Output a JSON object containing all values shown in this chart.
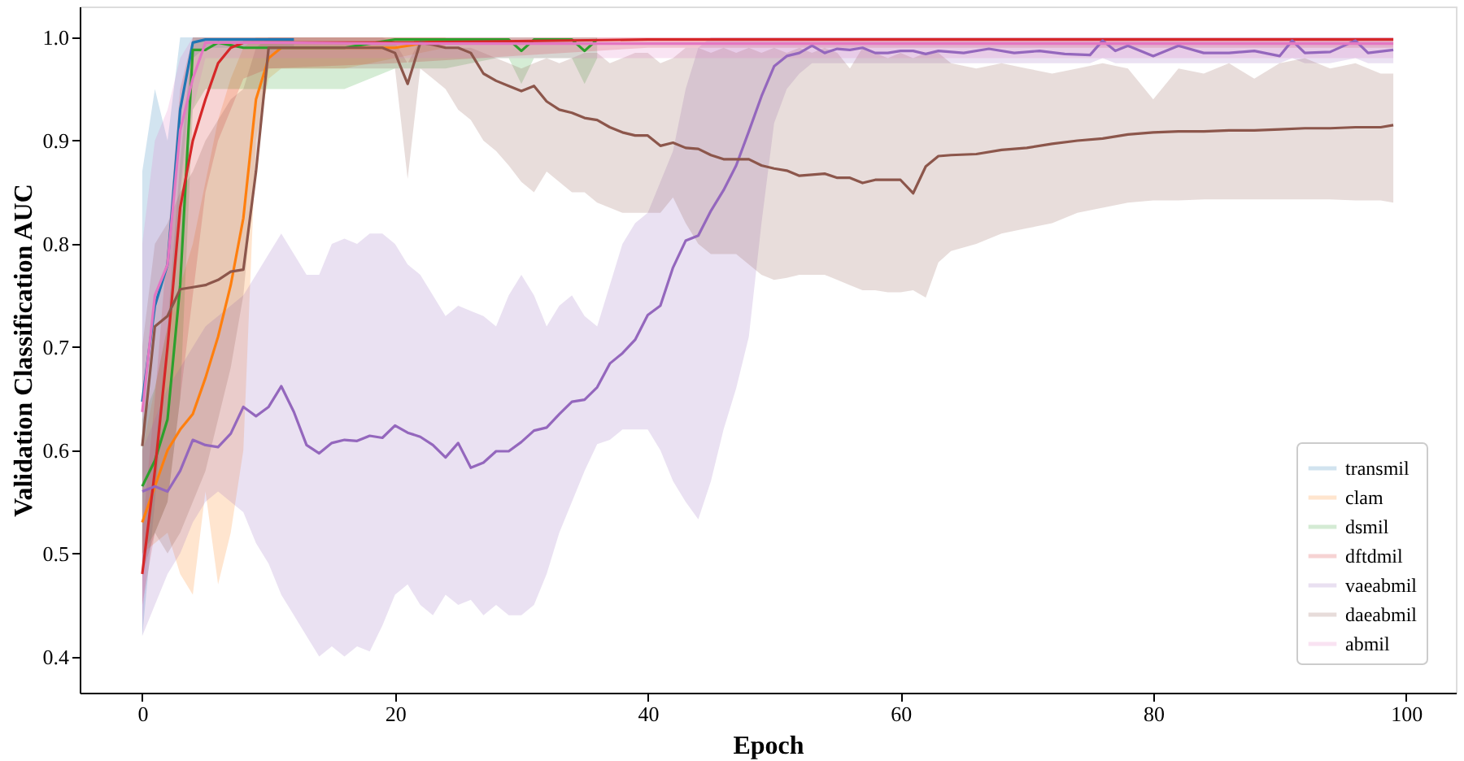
{
  "chart_data": {
    "type": "line",
    "xlabel": "Epoch",
    "ylabel": "Validation Classification AUC",
    "xlim": [
      -4.95,
      103.95
    ],
    "ylim": [
      0.365,
      1.03
    ],
    "xticks": [
      0,
      20,
      40,
      60,
      80,
      100
    ],
    "yticks": [
      {
        "value": 0.4,
        "label": "0.4"
      },
      {
        "value": 0.5,
        "label": "0.5"
      },
      {
        "value": 0.6,
        "label": "0.6"
      },
      {
        "value": 0.7,
        "label": "0.7"
      },
      {
        "value": 0.8,
        "label": "0.8"
      },
      {
        "value": 0.9,
        "label": "0.9"
      },
      {
        "value": 1.0,
        "label": "1.0"
      }
    ],
    "grid": false,
    "legend": "bottom right",
    "line_style": "solid",
    "marker": "none",
    "series": [
      {
        "name": "transmil",
        "color": "#1f77b4",
        "x": [
          0,
          1,
          2,
          3,
          4,
          5,
          8,
          12
        ],
        "values": [
          0.647,
          0.74,
          0.78,
          0.93,
          0.995,
          0.998,
          0.998,
          0.998
        ],
        "lower": [
          0.42,
          0.55,
          0.7,
          0.85,
          0.98,
          0.99,
          0.99,
          0.99
        ],
        "upper": [
          0.87,
          0.95,
          0.9,
          1.0,
          1.0,
          1.0,
          1.0,
          1.0
        ]
      },
      {
        "name": "clam",
        "color": "#ff7f0e",
        "x": [
          0,
          1,
          2,
          3,
          4,
          5,
          6,
          7,
          8,
          9,
          10,
          11,
          12,
          16,
          20,
          24
        ],
        "values": [
          0.53,
          0.565,
          0.6,
          0.62,
          0.635,
          0.67,
          0.71,
          0.76,
          0.825,
          0.94,
          0.98,
          0.99,
          0.99,
          0.99,
          0.99,
          0.998
        ],
        "lower": [
          0.5,
          0.51,
          0.52,
          0.48,
          0.46,
          0.56,
          0.47,
          0.52,
          0.6,
          0.9,
          0.96,
          0.97,
          0.97,
          0.97,
          0.98,
          0.99
        ],
        "upper": [
          0.6,
          0.66,
          0.72,
          0.76,
          0.8,
          0.86,
          0.92,
          0.96,
          0.99,
          1.0,
          1.0,
          1.0,
          1.0,
          1.0,
          1.0,
          1.0
        ]
      },
      {
        "name": "dsmil",
        "color": "#2ca02c",
        "x": [
          0,
          1,
          2,
          3,
          4,
          5,
          6,
          8,
          12,
          16,
          20,
          24,
          28,
          29,
          30,
          31,
          33,
          34,
          35,
          36
        ],
        "values": [
          0.565,
          0.59,
          0.63,
          0.76,
          0.988,
          0.988,
          0.995,
          0.99,
          0.99,
          0.99,
          0.998,
          0.998,
          0.998,
          0.998,
          0.987,
          0.998,
          0.998,
          0.998,
          0.987,
          0.998
        ],
        "lower": [
          0.5,
          0.52,
          0.55,
          0.65,
          0.93,
          0.95,
          0.95,
          0.95,
          0.95,
          0.95,
          0.97,
          0.97,
          0.98,
          0.98,
          0.955,
          0.98,
          0.98,
          0.98,
          0.955,
          0.98
        ],
        "upper": [
          0.63,
          0.66,
          0.72,
          0.88,
          1.0,
          1.0,
          1.0,
          1.0,
          1.0,
          1.0,
          1.0,
          1.0,
          1.0,
          1.0,
          1.0,
          1.0,
          1.0,
          1.0,
          1.0,
          1.0
        ]
      },
      {
        "name": "dftdmil",
        "color": "#d62728",
        "x": [
          0,
          1,
          2,
          3,
          4,
          5,
          6,
          7,
          8,
          10,
          20,
          40,
          60,
          80,
          99
        ],
        "values": [
          0.48,
          0.58,
          0.7,
          0.835,
          0.9,
          0.94,
          0.975,
          0.99,
          0.995,
          0.995,
          0.995,
          0.998,
          0.998,
          0.998,
          0.998
        ],
        "lower": [
          0.45,
          0.52,
          0.55,
          0.65,
          0.75,
          0.85,
          0.9,
          0.93,
          0.96,
          0.97,
          0.975,
          0.99,
          0.99,
          0.99,
          0.99
        ],
        "upper": [
          0.52,
          0.65,
          0.8,
          0.95,
          1.0,
          1.0,
          1.0,
          1.0,
          1.0,
          1.0,
          1.0,
          1.0,
          1.0,
          1.0,
          1.0
        ]
      },
      {
        "name": "vaeabmil",
        "color": "#9467bd",
        "x": [
          0,
          1,
          2,
          3,
          4,
          5,
          6,
          7,
          8,
          9,
          10,
          11,
          12,
          13,
          14,
          15,
          16,
          17,
          18,
          19,
          20,
          21,
          22,
          23,
          24,
          25,
          26,
          27,
          28,
          29,
          30,
          31,
          32,
          33,
          34,
          35,
          36,
          37,
          38,
          39,
          40,
          41,
          42,
          43,
          44,
          45,
          46,
          47,
          48,
          49,
          50,
          51,
          52,
          53,
          54,
          55,
          56,
          57,
          58,
          59,
          60,
          61,
          62,
          63,
          65,
          67,
          69,
          71,
          73,
          75,
          76,
          77,
          78,
          80,
          82,
          84,
          86,
          88,
          90,
          91,
          92,
          94,
          96,
          97,
          99
        ],
        "values": [
          0.56,
          0.565,
          0.56,
          0.58,
          0.61,
          0.605,
          0.603,
          0.616,
          0.642,
          0.633,
          0.642,
          0.662,
          0.637,
          0.605,
          0.597,
          0.607,
          0.61,
          0.609,
          0.614,
          0.612,
          0.624,
          0.617,
          0.613,
          0.605,
          0.593,
          0.607,
          0.583,
          0.588,
          0.599,
          0.599,
          0.608,
          0.619,
          0.622,
          0.635,
          0.647,
          0.649,
          0.661,
          0.684,
          0.694,
          0.707,
          0.731,
          0.74,
          0.777,
          0.803,
          0.808,
          0.832,
          0.852,
          0.876,
          0.909,
          0.943,
          0.972,
          0.982,
          0.985,
          0.992,
          0.985,
          0.989,
          0.988,
          0.99,
          0.985,
          0.985,
          0.987,
          0.987,
          0.984,
          0.987,
          0.985,
          0.989,
          0.985,
          0.987,
          0.984,
          0.983,
          0.997,
          0.987,
          0.992,
          0.982,
          0.992,
          0.985,
          0.985,
          0.987,
          0.982,
          0.997,
          0.985,
          0.986,
          0.997,
          0.985,
          0.988
        ],
        "lower": [
          0.42,
          0.45,
          0.48,
          0.5,
          0.53,
          0.55,
          0.56,
          0.55,
          0.54,
          0.51,
          0.49,
          0.46,
          0.44,
          0.42,
          0.4,
          0.41,
          0.4,
          0.41,
          0.405,
          0.43,
          0.46,
          0.47,
          0.45,
          0.44,
          0.46,
          0.45,
          0.455,
          0.44,
          0.45,
          0.44,
          0.44,
          0.45,
          0.48,
          0.52,
          0.55,
          0.58,
          0.606,
          0.61,
          0.62,
          0.62,
          0.62,
          0.6,
          0.57,
          0.55,
          0.533,
          0.57,
          0.62,
          0.66,
          0.71,
          0.82,
          0.917,
          0.95,
          0.965,
          0.975,
          0.975,
          0.975,
          0.975,
          0.975,
          0.975,
          0.975,
          0.975,
          0.975,
          0.975,
          0.975,
          0.975,
          0.975,
          0.975,
          0.975,
          0.975,
          0.975,
          0.98,
          0.975,
          0.975,
          0.975,
          0.975,
          0.975,
          0.975,
          0.975,
          0.975,
          0.98,
          0.975,
          0.975,
          0.98,
          0.975,
          0.975
        ],
        "upper": [
          0.6,
          0.63,
          0.66,
          0.68,
          0.7,
          0.72,
          0.73,
          0.74,
          0.75,
          0.77,
          0.79,
          0.81,
          0.79,
          0.77,
          0.77,
          0.8,
          0.805,
          0.8,
          0.81,
          0.81,
          0.8,
          0.78,
          0.77,
          0.75,
          0.73,
          0.74,
          0.735,
          0.73,
          0.72,
          0.75,
          0.77,
          0.75,
          0.72,
          0.74,
          0.75,
          0.73,
          0.72,
          0.76,
          0.8,
          0.82,
          0.83,
          0.86,
          0.89,
          0.95,
          0.99,
          1.0,
          1.0,
          1.0,
          1.0,
          1.0,
          1.0,
          1.0,
          1.0,
          1.0,
          1.0,
          1.0,
          1.0,
          1.0,
          1.0,
          1.0,
          1.0,
          1.0,
          1.0,
          1.0,
          1.0,
          1.0,
          1.0,
          1.0,
          1.0,
          1.0,
          1.0,
          1.0,
          1.0,
          1.0,
          1.0,
          1.0,
          1.0,
          1.0,
          1.0,
          1.0,
          1.0,
          1.0,
          1.0,
          1.0,
          1.0
        ]
      },
      {
        "name": "daeabmil",
        "color": "#8c564b",
        "x": [
          0,
          1,
          2,
          3,
          4,
          5,
          6,
          7,
          8,
          9,
          10,
          11,
          12,
          13,
          14,
          15,
          16,
          17,
          18,
          19,
          20,
          21,
          22,
          23,
          24,
          25,
          26,
          27,
          28,
          29,
          30,
          31,
          32,
          33,
          34,
          35,
          36,
          37,
          38,
          39,
          40,
          41,
          42,
          43,
          44,
          45,
          46,
          47,
          48,
          49,
          50,
          51,
          52,
          53,
          54,
          55,
          56,
          57,
          58,
          59,
          60,
          61,
          62,
          63,
          64,
          66,
          68,
          70,
          72,
          74,
          76,
          78,
          80,
          82,
          84,
          86,
          88,
          90,
          92,
          94,
          96,
          98,
          99
        ],
        "values": [
          0.604,
          0.72,
          0.73,
          0.756,
          0.758,
          0.76,
          0.765,
          0.773,
          0.775,
          0.87,
          0.99,
          0.99,
          0.99,
          0.99,
          0.99,
          0.99,
          0.99,
          0.99,
          0.99,
          0.99,
          0.985,
          0.955,
          0.995,
          0.993,
          0.99,
          0.99,
          0.985,
          0.965,
          0.958,
          0.953,
          0.948,
          0.953,
          0.938,
          0.93,
          0.927,
          0.922,
          0.92,
          0.913,
          0.908,
          0.905,
          0.905,
          0.895,
          0.898,
          0.893,
          0.892,
          0.886,
          0.882,
          0.882,
          0.882,
          0.876,
          0.873,
          0.871,
          0.866,
          0.867,
          0.868,
          0.864,
          0.864,
          0.859,
          0.862,
          0.862,
          0.862,
          0.849,
          0.875,
          0.885,
          0.886,
          0.887,
          0.891,
          0.893,
          0.897,
          0.9,
          0.902,
          0.906,
          0.908,
          0.909,
          0.909,
          0.91,
          0.91,
          0.911,
          0.912,
          0.912,
          0.913,
          0.913,
          0.915
        ],
        "lower": [
          0.48,
          0.52,
          0.5,
          0.52,
          0.55,
          0.58,
          0.63,
          0.68,
          0.75,
          0.88,
          0.97,
          0.97,
          0.97,
          0.97,
          0.97,
          0.97,
          0.97,
          0.97,
          0.97,
          0.97,
          0.97,
          0.863,
          0.97,
          0.96,
          0.95,
          0.93,
          0.92,
          0.9,
          0.89,
          0.876,
          0.86,
          0.85,
          0.87,
          0.86,
          0.85,
          0.85,
          0.84,
          0.835,
          0.83,
          0.83,
          0.83,
          0.83,
          0.845,
          0.82,
          0.8,
          0.79,
          0.79,
          0.79,
          0.78,
          0.77,
          0.765,
          0.767,
          0.77,
          0.77,
          0.77,
          0.765,
          0.76,
          0.755,
          0.755,
          0.753,
          0.753,
          0.755,
          0.748,
          0.782,
          0.793,
          0.8,
          0.81,
          0.815,
          0.82,
          0.83,
          0.835,
          0.84,
          0.842,
          0.842,
          0.843,
          0.843,
          0.843,
          0.843,
          0.843,
          0.843,
          0.842,
          0.842,
          0.84
        ],
        "upper": [
          0.7,
          0.8,
          0.82,
          0.85,
          0.87,
          0.9,
          0.92,
          0.94,
          0.95,
          0.99,
          1.0,
          1.0,
          1.0,
          1.0,
          1.0,
          1.0,
          1.0,
          1.0,
          1.0,
          1.0,
          0.995,
          0.975,
          0.998,
          0.995,
          0.99,
          0.99,
          0.99,
          0.985,
          0.98,
          0.975,
          0.97,
          0.975,
          0.98,
          0.975,
          0.98,
          0.985,
          0.985,
          0.975,
          0.98,
          0.985,
          0.985,
          0.975,
          0.98,
          0.99,
          0.99,
          0.985,
          0.99,
          0.985,
          0.99,
          0.985,
          0.99,
          0.985,
          0.99,
          0.985,
          0.99,
          0.985,
          0.97,
          0.99,
          0.985,
          0.98,
          0.985,
          0.98,
          0.985,
          0.985,
          0.975,
          0.97,
          0.975,
          0.97,
          0.965,
          0.97,
          0.975,
          0.97,
          0.94,
          0.97,
          0.965,
          0.975,
          0.96,
          0.975,
          0.98,
          0.97,
          0.975,
          0.965,
          0.965
        ]
      },
      {
        "name": "abmil",
        "color": "#e377c2",
        "x": [
          0,
          1,
          2,
          3,
          4,
          5,
          10,
          20,
          40,
          60,
          80,
          99
        ],
        "values": [
          0.637,
          0.75,
          0.78,
          0.91,
          0.96,
          0.995,
          0.995,
          0.994,
          0.994,
          0.994,
          0.994,
          0.994
        ],
        "lower": [
          0.43,
          0.6,
          0.7,
          0.85,
          0.93,
          0.98,
          0.98,
          0.98,
          0.98,
          0.98,
          0.98,
          0.98
        ],
        "upper": [
          0.8,
          0.9,
          0.93,
          0.98,
          1.0,
          1.0,
          1.0,
          1.0,
          1.0,
          1.0,
          1.0,
          1.0
        ]
      }
    ]
  }
}
